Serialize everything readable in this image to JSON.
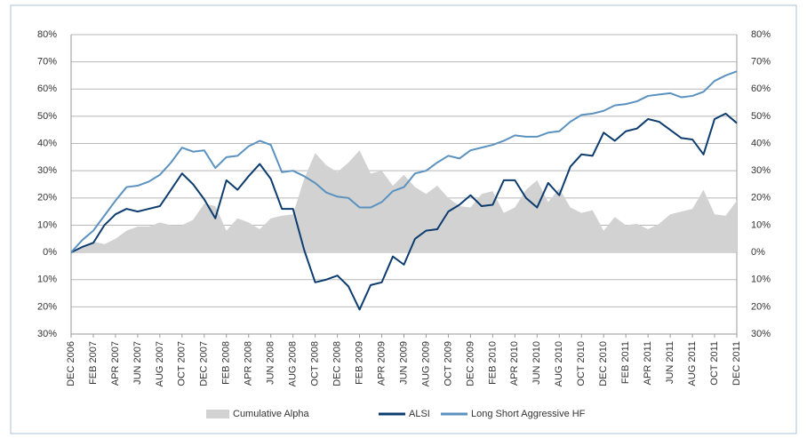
{
  "chart_data": {
    "type": "line",
    "categories": [
      "DEC 2006",
      null,
      "FEB 2007",
      null,
      "APR 2007",
      null,
      "JUN 2007",
      null,
      "AUG 2007",
      null,
      "OCT 2007",
      null,
      "DEC 2007",
      null,
      "FEB 2008",
      null,
      "APR 2008",
      null,
      "JUN 2008",
      null,
      "AUG 2008",
      null,
      "OCT 2008",
      null,
      "DEC 2008",
      null,
      "FEB 2009",
      null,
      "APR 2009",
      null,
      "JUN 2009",
      null,
      "AUG 2009",
      null,
      "OCT 2009",
      null,
      "DEC 2009",
      null,
      "FEB 2010",
      null,
      "APR 2010",
      null,
      "JUN 2010",
      null,
      "AUG 2010",
      null,
      "OCT 2010",
      null,
      "DEC 2010",
      null,
      "FEB 2011",
      null,
      "APR 2011",
      null,
      "JUN 2011",
      null,
      "AUG 2011",
      null,
      "OCT 2011",
      null,
      "DEC 2011"
    ],
    "series": [
      {
        "name": "Cumulative Alpha",
        "type": "area",
        "color": "#d2d2d2",
        "values": [
          0,
          2,
          4,
          3,
          5,
          8,
          9.5,
          9.5,
          11,
          10,
          10,
          12,
          18,
          17,
          8,
          12.5,
          11,
          8.5,
          12.5,
          13.5,
          14,
          27,
          36.5,
          32,
          29.5,
          33,
          37.5,
          29,
          30,
          24.5,
          28.5,
          24,
          21.5,
          24.5,
          20,
          17,
          16.5,
          21.5,
          22.5,
          14.5,
          16.5,
          23,
          26.5,
          18.5,
          23.5,
          16.5,
          14.5,
          15.5,
          8,
          13,
          10,
          10.5,
          8.5,
          10.5,
          14,
          15,
          16,
          23,
          14,
          13.5,
          19
        ]
      },
      {
        "name": "ALSI",
        "type": "line",
        "color": "#0d3c6e",
        "values": [
          0,
          2,
          3.5,
          10,
          14,
          16,
          15,
          16,
          17,
          23,
          29,
          25,
          19.5,
          12.5,
          26.5,
          23,
          28,
          32.5,
          27,
          16,
          16,
          1,
          -11,
          -10,
          -8.5,
          -12.5,
          -21,
          -12,
          -11,
          -1.5,
          -4.5,
          5,
          8,
          8.5,
          15,
          17.5,
          21,
          17,
          17.5,
          26.5,
          26.5,
          20,
          16.5,
          25.5,
          21,
          31.5,
          36,
          35.5,
          44,
          41,
          44.5,
          45.5,
          49,
          48,
          45,
          42,
          41.5,
          36,
          49,
          51,
          47.5
        ]
      },
      {
        "name": "Long Short Aggressive HF",
        "type": "line",
        "color": "#5b92bf",
        "values": [
          0,
          4.5,
          8,
          13.5,
          19,
          24,
          24.5,
          26,
          28.5,
          33,
          38.5,
          37,
          37.5,
          31,
          35,
          35.5,
          39,
          41,
          39.5,
          29.5,
          30,
          28,
          25.5,
          22,
          20.5,
          20,
          16.5,
          16.5,
          18.5,
          22.5,
          24,
          29,
          30,
          33,
          35.5,
          34.5,
          37.5,
          38.5,
          39.5,
          41,
          43,
          42.5,
          42.5,
          44,
          44.5,
          48,
          50.5,
          51,
          52,
          54,
          54.5,
          55.5,
          57.5,
          58,
          58.5,
          57,
          57.5,
          59,
          63,
          65,
          66.5
        ]
      }
    ],
    "ylim": [
      -30,
      80
    ],
    "yticks": [
      {
        "value": -30,
        "label": "30%"
      },
      {
        "value": -20,
        "label": "20%"
      },
      {
        "value": -10,
        "label": "10%"
      },
      {
        "value": 0,
        "label": "0%"
      },
      {
        "value": 10,
        "label": "10%"
      },
      {
        "value": 20,
        "label": "20%"
      },
      {
        "value": 30,
        "label": "30%"
      },
      {
        "value": 40,
        "label": "40%"
      },
      {
        "value": 50,
        "label": "50%"
      },
      {
        "value": 60,
        "label": "60%"
      },
      {
        "value": 70,
        "label": "70%"
      },
      {
        "value": 80,
        "label": "80%"
      }
    ],
    "grid": true,
    "legend": "bottom"
  }
}
